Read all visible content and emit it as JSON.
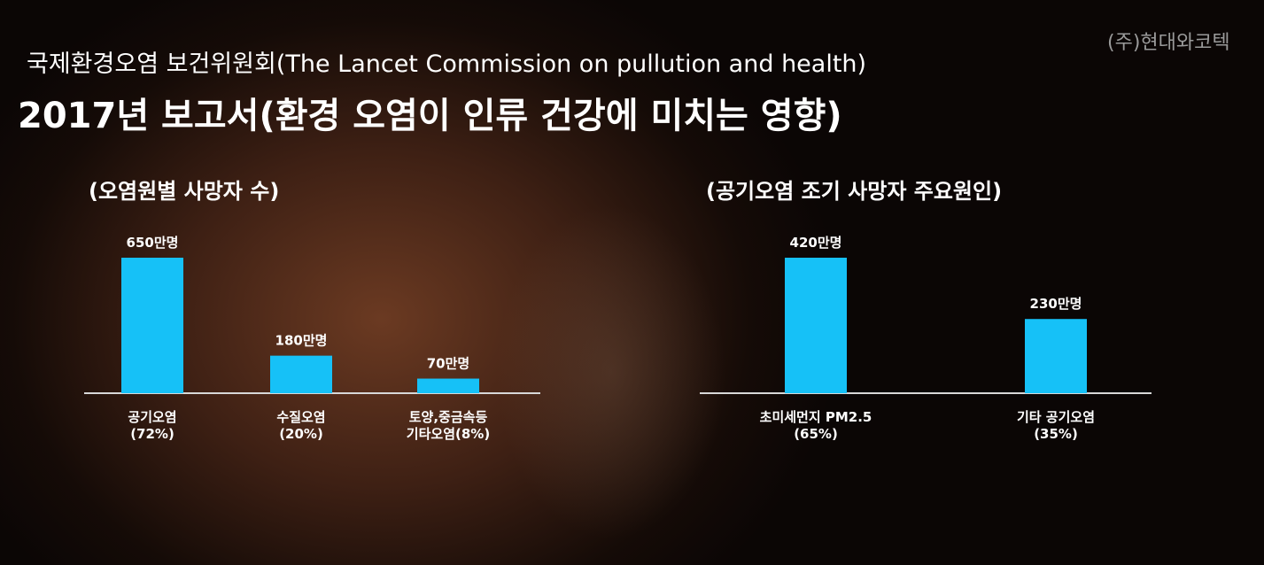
{
  "watermark": "(주)현대와코텍",
  "header": {
    "subtitle": "국제환경오염 보건위원회(The Lancet Commission on pullution and health)",
    "title": "2017년 보고서(환경 오염이 인류 건강에 미치는 영향)"
  },
  "chart_data": [
    {
      "type": "bar",
      "title": "(오염원별 사망자 수)",
      "categories": [
        "공기오염\n(72%)",
        "수질오염\n(20%)",
        "토양,중금속등\n기타오염(8%)"
      ],
      "values": [
        650,
        180,
        70
      ],
      "value_labels": [
        "650만명",
        "180만명",
        "70만명"
      ],
      "color": "#16c1f7"
    },
    {
      "type": "bar",
      "title": "(공기오염 조기 사망자 주요원인)",
      "categories": [
        "초미세먼지 PM2.5\n(65%)",
        "기타 공기오염\n(35%)"
      ],
      "values": [
        420,
        230
      ],
      "value_labels": [
        "420만명",
        "230만명"
      ],
      "color": "#16c1f7"
    }
  ]
}
